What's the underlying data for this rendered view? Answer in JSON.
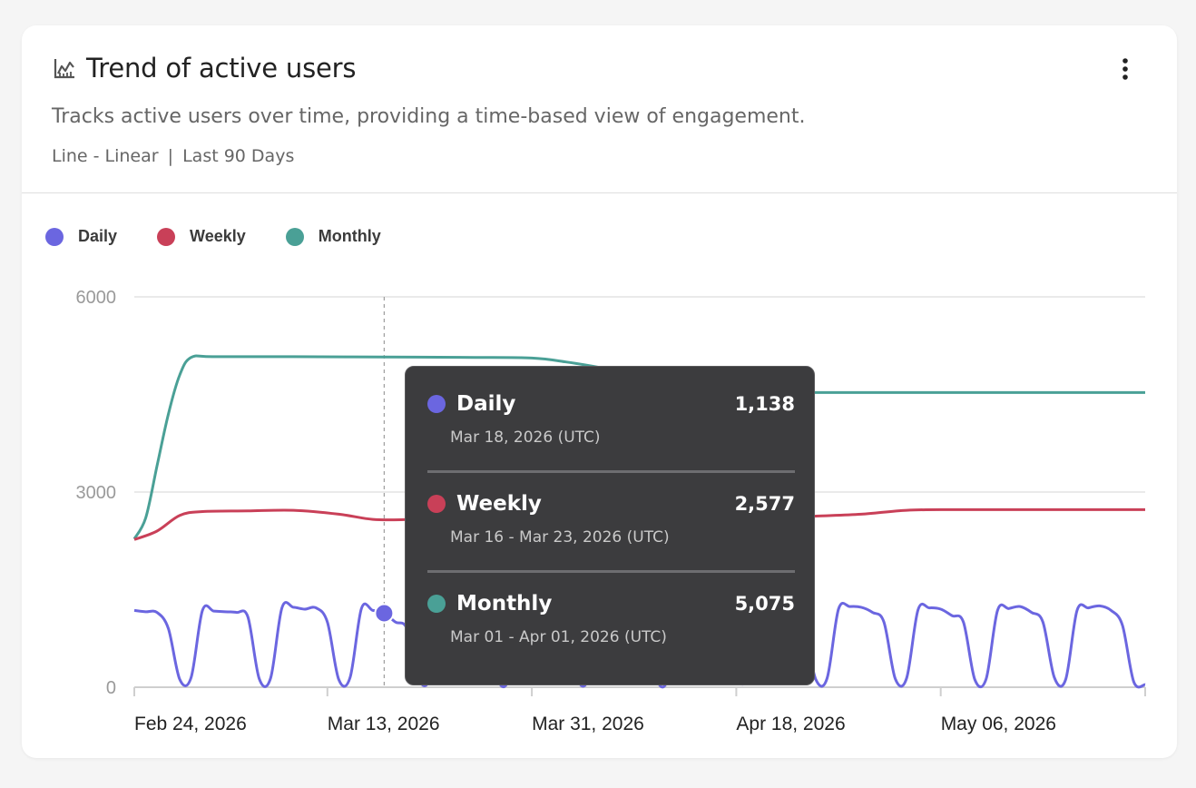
{
  "card": {
    "title": "Trend of active users",
    "title_icon": "line-chart-icon",
    "menu_icon": "more-vertical-icon",
    "description": "Tracks active users over time, providing a time-based view of engagement.",
    "chart_kind": "Line - Linear",
    "separator": "|",
    "time_range": "Last 90 Days"
  },
  "legend": [
    {
      "name": "Daily",
      "color": "#6b66e0"
    },
    {
      "name": "Weekly",
      "color": "#c94058"
    },
    {
      "name": "Monthly",
      "color": "#4aa096"
    }
  ],
  "tooltip": {
    "items": [
      {
        "name": "Daily",
        "value": "1,138",
        "date": "Mar 18, 2026 (UTC)",
        "color": "#6b66e0"
      },
      {
        "name": "Weekly",
        "value": "2,577",
        "date": "Mar 16 - Mar 23, 2026 (UTC)",
        "color": "#c94058"
      },
      {
        "name": "Monthly",
        "value": "5,075",
        "date": "Mar 01 - Apr 01, 2026 (UTC)",
        "color": "#4aa096"
      }
    ]
  },
  "chart_data": {
    "type": "line",
    "ylim": [
      0,
      6000
    ],
    "yticks": [
      0,
      3000,
      6000
    ],
    "x_start": "2026-02-24",
    "x_end": "2026-05-24",
    "xticks": [
      {
        "date": "2026-02-24",
        "label": "Feb 24, 2026"
      },
      {
        "date": "2026-03-13",
        "label": "Mar 13, 2026"
      },
      {
        "date": "2026-03-31",
        "label": "Mar 31, 2026"
      },
      {
        "date": "2026-04-18",
        "label": "Apr 18, 2026"
      },
      {
        "date": "2026-05-06",
        "label": "May 06, 2026"
      }
    ],
    "hover_date": "2026-03-18",
    "series": [
      {
        "name": "Daily",
        "color": "#6b66e0",
        "points": [
          [
            "2026-02-24",
            1180
          ],
          [
            "2026-02-25",
            1160
          ],
          [
            "2026-02-26",
            1150
          ],
          [
            "2026-02-27",
            900
          ],
          [
            "2026-02-28",
            120
          ],
          [
            "2026-03-01",
            150
          ],
          [
            "2026-03-02",
            1180
          ],
          [
            "2026-03-03",
            1170
          ],
          [
            "2026-03-04",
            1160
          ],
          [
            "2026-03-05",
            1150
          ],
          [
            "2026-03-06",
            1080
          ],
          [
            "2026-03-07",
            130
          ],
          [
            "2026-03-08",
            140
          ],
          [
            "2026-03-09",
            1220
          ],
          [
            "2026-03-10",
            1230
          ],
          [
            "2026-03-11",
            1200
          ],
          [
            "2026-03-12",
            1220
          ],
          [
            "2026-03-13",
            1000
          ],
          [
            "2026-03-14",
            120
          ],
          [
            "2026-03-15",
            150
          ],
          [
            "2026-03-16",
            1210
          ],
          [
            "2026-03-17",
            1180
          ],
          [
            "2026-03-18",
            1138
          ],
          [
            "2026-03-19",
            1000
          ],
          [
            "2026-03-20",
            900
          ],
          [
            "2026-03-21",
            140
          ],
          [
            "2026-03-22",
            130
          ],
          [
            "2026-03-23",
            1180
          ],
          [
            "2026-03-24",
            1190
          ],
          [
            "2026-03-25",
            1170
          ],
          [
            "2026-03-26",
            1160
          ],
          [
            "2026-03-27",
            1050
          ],
          [
            "2026-03-28",
            120
          ],
          [
            "2026-03-29",
            140
          ],
          [
            "2026-03-30",
            1200
          ],
          [
            "2026-03-31",
            1210
          ],
          [
            "2026-04-01",
            1190
          ],
          [
            "2026-04-02",
            1180
          ],
          [
            "2026-04-03",
            1000
          ],
          [
            "2026-04-04",
            130
          ],
          [
            "2026-04-05",
            140
          ],
          [
            "2026-04-06",
            1190
          ],
          [
            "2026-04-07",
            1200
          ],
          [
            "2026-04-08",
            1180
          ],
          [
            "2026-04-09",
            1170
          ],
          [
            "2026-04-10",
            1050
          ],
          [
            "2026-04-11",
            120
          ],
          [
            "2026-04-12",
            130
          ],
          [
            "2026-04-13",
            1180
          ],
          [
            "2026-04-14",
            1000
          ],
          [
            "2026-04-15",
            1240
          ],
          [
            "2026-04-16",
            1160
          ],
          [
            "2026-04-17",
            600
          ],
          [
            "2026-04-18",
            130
          ],
          [
            "2026-04-19",
            150
          ],
          [
            "2026-04-20",
            1150
          ],
          [
            "2026-04-21",
            1180
          ],
          [
            "2026-04-22",
            1190
          ],
          [
            "2026-04-23",
            1150
          ],
          [
            "2026-04-24",
            900
          ],
          [
            "2026-04-25",
            120
          ],
          [
            "2026-04-26",
            140
          ],
          [
            "2026-04-27",
            1200
          ],
          [
            "2026-04-28",
            1240
          ],
          [
            "2026-04-29",
            1230
          ],
          [
            "2026-04-30",
            1150
          ],
          [
            "2026-05-01",
            1000
          ],
          [
            "2026-05-02",
            130
          ],
          [
            "2026-05-03",
            140
          ],
          [
            "2026-05-04",
            1190
          ],
          [
            "2026-05-05",
            1220
          ],
          [
            "2026-05-06",
            1200
          ],
          [
            "2026-05-07",
            1100
          ],
          [
            "2026-05-08",
            1000
          ],
          [
            "2026-05-09",
            120
          ],
          [
            "2026-05-10",
            130
          ],
          [
            "2026-05-11",
            1180
          ],
          [
            "2026-05-12",
            1210
          ],
          [
            "2026-05-13",
            1240
          ],
          [
            "2026-05-14",
            1150
          ],
          [
            "2026-05-15",
            1000
          ],
          [
            "2026-05-16",
            150
          ],
          [
            "2026-05-17",
            120
          ],
          [
            "2026-05-18",
            1180
          ],
          [
            "2026-05-19",
            1220
          ],
          [
            "2026-05-20",
            1250
          ],
          [
            "2026-05-21",
            1180
          ],
          [
            "2026-05-22",
            950
          ],
          [
            "2026-05-23",
            80
          ],
          [
            "2026-05-24",
            40
          ]
        ]
      },
      {
        "name": "Weekly",
        "color": "#c94058",
        "points": [
          [
            "2026-02-24",
            2270
          ],
          [
            "2026-02-26",
            2400
          ],
          [
            "2026-02-28",
            2640
          ],
          [
            "2026-03-02",
            2700
          ],
          [
            "2026-03-06",
            2710
          ],
          [
            "2026-03-10",
            2720
          ],
          [
            "2026-03-14",
            2660
          ],
          [
            "2026-03-17",
            2580
          ],
          [
            "2026-03-20",
            2577
          ],
          [
            "2026-03-24",
            2600
          ],
          [
            "2026-03-28",
            2620
          ],
          [
            "2026-04-01",
            2610
          ],
          [
            "2026-04-05",
            2600
          ],
          [
            "2026-04-09",
            2600
          ],
          [
            "2026-04-13",
            2610
          ],
          [
            "2026-04-17",
            2600
          ],
          [
            "2026-04-21",
            2600
          ],
          [
            "2026-04-25",
            2630
          ],
          [
            "2026-04-29",
            2660
          ],
          [
            "2026-05-03",
            2720
          ],
          [
            "2026-05-07",
            2730
          ],
          [
            "2026-05-11",
            2730
          ],
          [
            "2026-05-15",
            2730
          ],
          [
            "2026-05-19",
            2730
          ],
          [
            "2026-05-24",
            2730
          ]
        ]
      },
      {
        "name": "Monthly",
        "color": "#4aa096",
        "points": [
          [
            "2026-02-24",
            2280
          ],
          [
            "2026-02-25",
            2600
          ],
          [
            "2026-02-26",
            3400
          ],
          [
            "2026-02-27",
            4200
          ],
          [
            "2026-02-28",
            4800
          ],
          [
            "2026-03-01",
            5070
          ],
          [
            "2026-03-03",
            5080
          ],
          [
            "2026-03-10",
            5080
          ],
          [
            "2026-03-18",
            5075
          ],
          [
            "2026-03-26",
            5070
          ],
          [
            "2026-03-31",
            5060
          ],
          [
            "2026-04-03",
            5000
          ],
          [
            "2026-04-07",
            4880
          ],
          [
            "2026-04-11",
            4720
          ],
          [
            "2026-04-15",
            4600
          ],
          [
            "2026-04-19",
            4540
          ],
          [
            "2026-04-25",
            4530
          ],
          [
            "2026-05-03",
            4530
          ],
          [
            "2026-05-12",
            4530
          ],
          [
            "2026-05-24",
            4530
          ]
        ]
      }
    ]
  }
}
